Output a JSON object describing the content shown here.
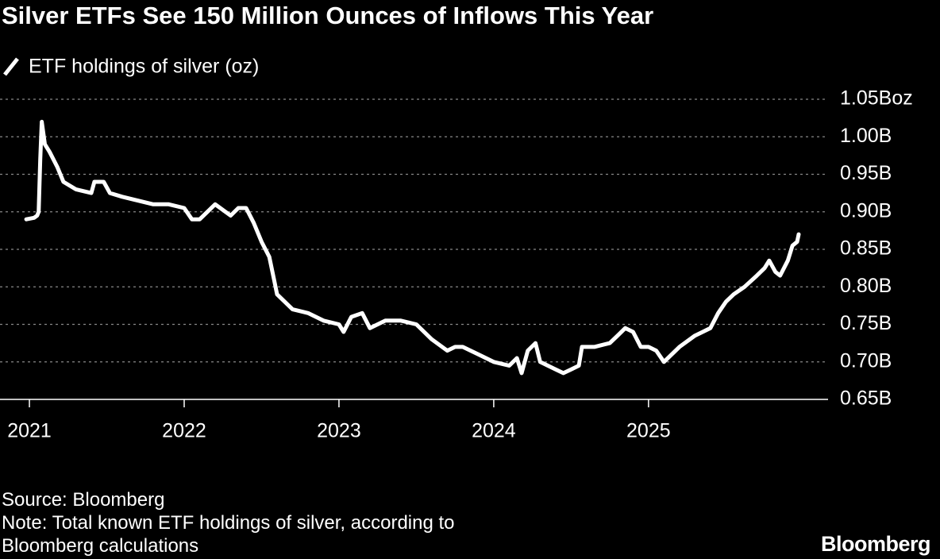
{
  "chart_data": {
    "type": "line",
    "title": "Silver ETFs See 150 Million Ounces of Inflows This Year",
    "x": [
      2020.98,
      2021.03,
      2021.05,
      2021.06,
      2021.07,
      2021.08,
      2021.1,
      2021.13,
      2021.18,
      2021.22,
      2021.3,
      2021.4,
      2021.42,
      2021.48,
      2021.52,
      2021.6,
      2021.7,
      2021.8,
      2021.9,
      2022.0,
      2022.05,
      2022.1,
      2022.15,
      2022.2,
      2022.3,
      2022.35,
      2022.4,
      2022.45,
      2022.5,
      2022.55,
      2022.58,
      2022.6,
      2022.7,
      2022.8,
      2022.9,
      2023.0,
      2023.03,
      2023.08,
      2023.15,
      2023.2,
      2023.3,
      2023.4,
      2023.5,
      2023.55,
      2023.6,
      2023.7,
      2023.75,
      2023.8,
      2023.9,
      2024.0,
      2024.1,
      2024.15,
      2024.18,
      2024.22,
      2024.27,
      2024.3,
      2024.35,
      2024.4,
      2024.45,
      2024.5,
      2024.55,
      2024.57,
      2024.65,
      2024.75,
      2024.8,
      2024.85,
      2024.9,
      2024.95,
      2025.0,
      2025.05,
      2025.1,
      2025.15,
      2025.2,
      2025.3,
      2025.35,
      2025.4,
      2025.45,
      2025.5,
      2025.55,
      2025.62,
      2025.7,
      2025.75,
      2025.78,
      2025.82,
      2025.85,
      2025.9,
      2025.93,
      2025.96,
      2025.97
    ],
    "series": [
      {
        "name": "ETF holdings of silver (oz)",
        "color": "#ffffff",
        "values": [
          0.89,
          0.892,
          0.895,
          0.9,
          0.97,
          1.02,
          0.99,
          0.98,
          0.96,
          0.94,
          0.93,
          0.925,
          0.94,
          0.94,
          0.925,
          0.92,
          0.915,
          0.91,
          0.91,
          0.905,
          0.89,
          0.89,
          0.9,
          0.91,
          0.895,
          0.905,
          0.905,
          0.885,
          0.86,
          0.84,
          0.81,
          0.79,
          0.77,
          0.765,
          0.755,
          0.75,
          0.74,
          0.76,
          0.765,
          0.745,
          0.755,
          0.755,
          0.75,
          0.74,
          0.73,
          0.715,
          0.72,
          0.72,
          0.71,
          0.7,
          0.695,
          0.705,
          0.685,
          0.715,
          0.725,
          0.7,
          0.695,
          0.69,
          0.685,
          0.69,
          0.695,
          0.72,
          0.72,
          0.725,
          0.735,
          0.745,
          0.74,
          0.72,
          0.72,
          0.715,
          0.7,
          0.71,
          0.72,
          0.735,
          0.74,
          0.745,
          0.765,
          0.78,
          0.79,
          0.8,
          0.815,
          0.825,
          0.835,
          0.82,
          0.815,
          0.835,
          0.855,
          0.86,
          0.87
        ]
      }
    ],
    "xlim": [
      2020.81,
      2026.16
    ],
    "xticks": [
      2021,
      2022,
      2023,
      2024,
      2025
    ],
    "ylim": [
      0.65,
      1.05
    ],
    "yticks": [
      {
        "value": 0.65,
        "label": "0.65B"
      },
      {
        "value": 0.7,
        "label": "0.70B"
      },
      {
        "value": 0.75,
        "label": "0.75B"
      },
      {
        "value": 0.8,
        "label": "0.80B"
      },
      {
        "value": 0.85,
        "label": "0.85B"
      },
      {
        "value": 0.9,
        "label": "0.90B"
      },
      {
        "value": 0.95,
        "label": "0.95B"
      },
      {
        "value": 1.0,
        "label": "1.00B"
      },
      {
        "value": 1.05,
        "label": "1.05Boz"
      }
    ],
    "grid": true,
    "source": "Source: Bloomberg",
    "note": "Note: Total known ETF holdings of silver, according to Bloomberg calculations",
    "logo": "Bloomberg"
  }
}
